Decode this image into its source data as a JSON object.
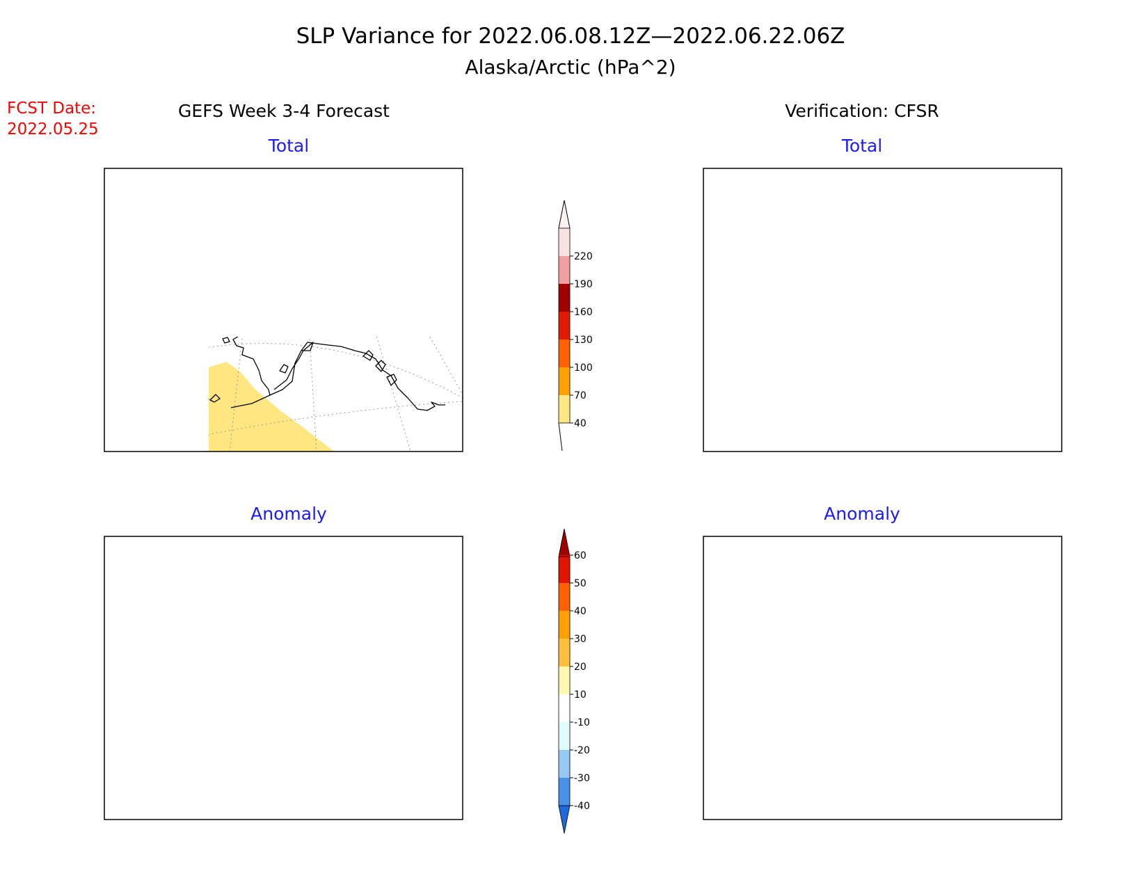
{
  "title": "SLP Variance for 2022.06.08.12Z—2022.06.22.06Z",
  "subtitle": "Alaska/Arctic (hPa^2)",
  "fcst_date_label": "FCST Date:",
  "fcst_date_value": "2022.05.25",
  "left_column_title": "GEFS Week 3-4 Forecast",
  "right_column_title": "Verification: CFSR",
  "panels": {
    "fcst_total": {
      "label": "Total"
    },
    "verif_total": {
      "label": "Total"
    },
    "fcst_anomaly": {
      "label": "Anomaly"
    },
    "verif_anomaly": {
      "label": "Anomaly"
    }
  },
  "total_colorbar": {
    "ticks": [
      "40",
      "70",
      "100",
      "130",
      "160",
      "190",
      "220"
    ],
    "colors": [
      "#ffe680",
      "#ffa200",
      "#ff6100",
      "#e11a00",
      "#a10000",
      "#f0a0a0",
      "#fbe2e2"
    ]
  },
  "anomaly_colorbar": {
    "ticks": [
      "-40",
      "-30",
      "-20",
      "-10",
      "10",
      "20",
      "30",
      "40",
      "50",
      "60"
    ],
    "colors": [
      "#1c68dc",
      "#4a90e8",
      "#96c8f5",
      "#e0fcfc",
      "#ffffff",
      "#fff8b0",
      "#ffbe3c",
      "#ffa000",
      "#ff6000",
      "#e11400",
      "#a00000"
    ]
  },
  "colors": {
    "title_text": "#000000",
    "fcst_date": "#ff0000",
    "panel_label": "#1a1aff"
  }
}
